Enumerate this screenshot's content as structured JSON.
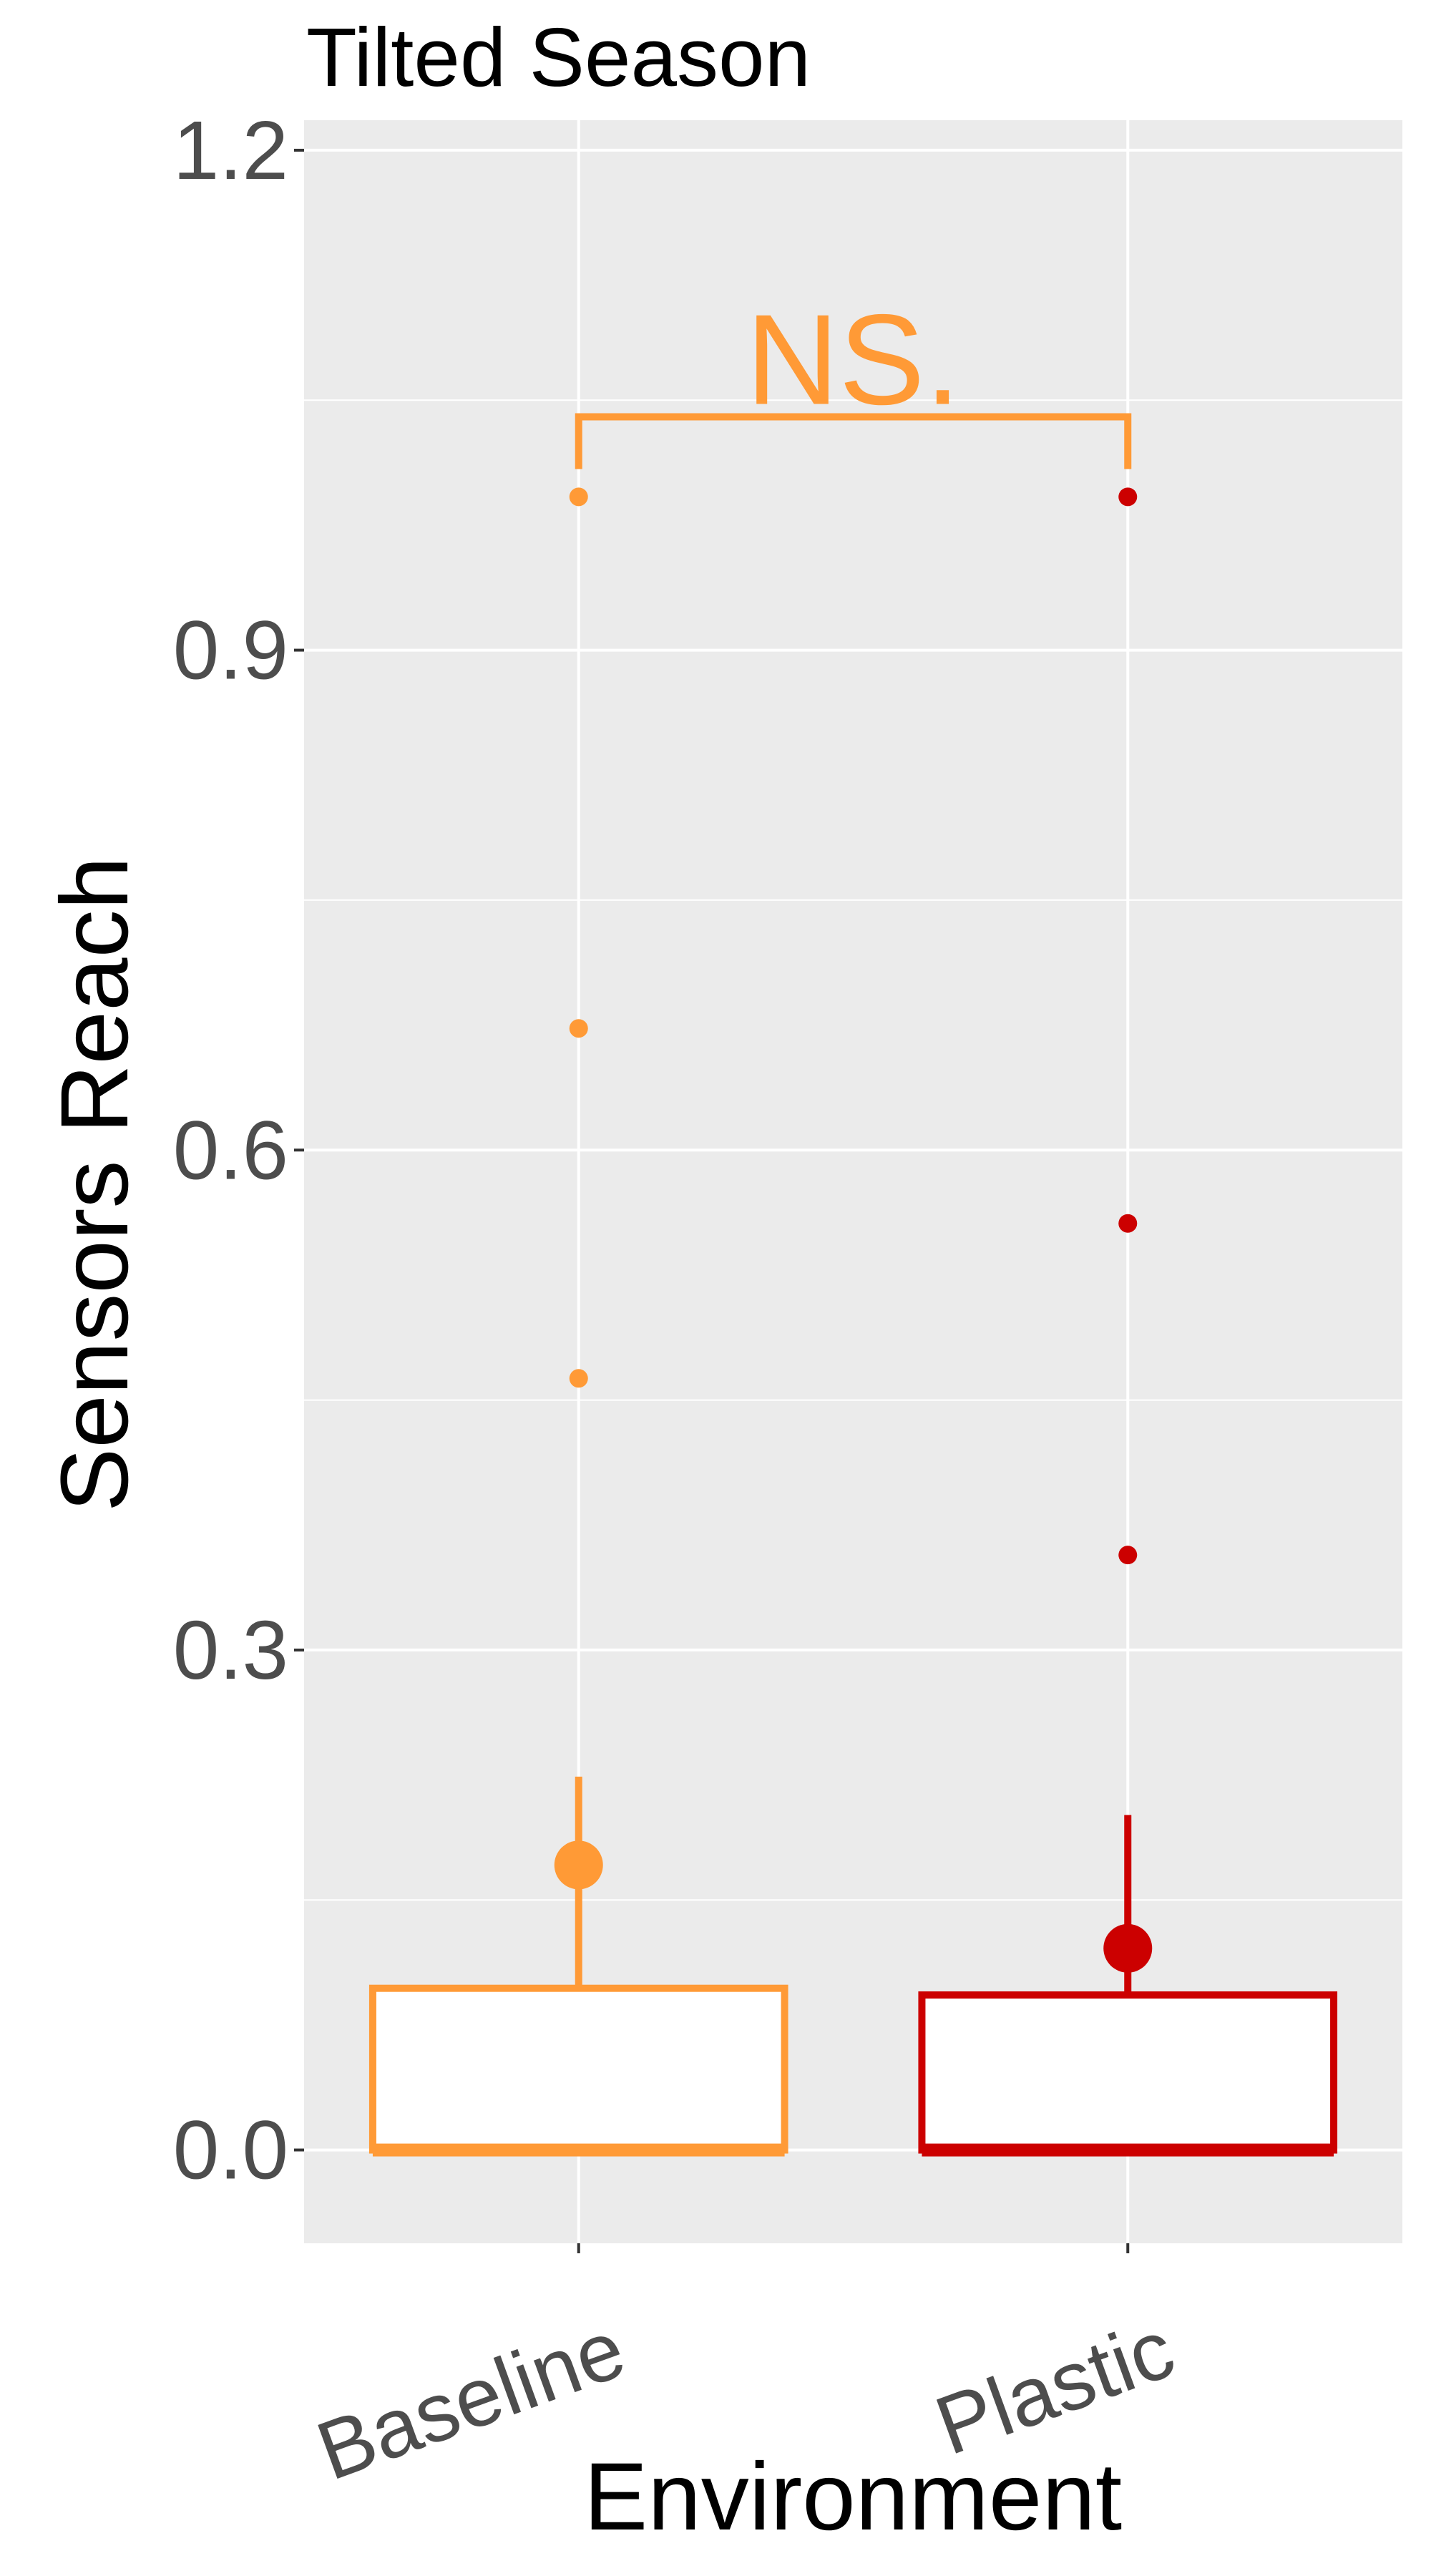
{
  "chart_data": {
    "type": "box",
    "title": "Tilted Season",
    "xlabel": "Environment",
    "ylabel": "Sensors Reach",
    "ylim": [
      -0.056,
      1.218
    ],
    "yticks": [
      0.0,
      0.3,
      0.6,
      0.9,
      1.2
    ],
    "ytick_labels": [
      "0.0",
      "0.3",
      "0.6",
      "0.9",
      "1.2"
    ],
    "grid": true,
    "categories": [
      "Baseline",
      "Plastic"
    ],
    "series": [
      {
        "category": "Baseline",
        "color": "#FF9A36",
        "q1": 0.0,
        "median": 0.0,
        "q3": 0.097,
        "whisker_low": 0.0,
        "whisker_high": 0.224,
        "mean": 0.171,
        "outliers": [
          0.463,
          0.673,
          0.992
        ]
      },
      {
        "category": "Plastic",
        "color": "#CC0000",
        "q1": 0.0,
        "median": 0.0,
        "q3": 0.093,
        "whisker_low": 0.0,
        "whisker_high": 0.201,
        "mean": 0.121,
        "outliers": [
          0.357,
          0.556,
          0.992
        ]
      }
    ],
    "annotations": [
      {
        "text": "NS.",
        "between": [
          "Baseline",
          "Plastic"
        ],
        "y": 1.04,
        "color": "#FF9A36"
      }
    ]
  }
}
